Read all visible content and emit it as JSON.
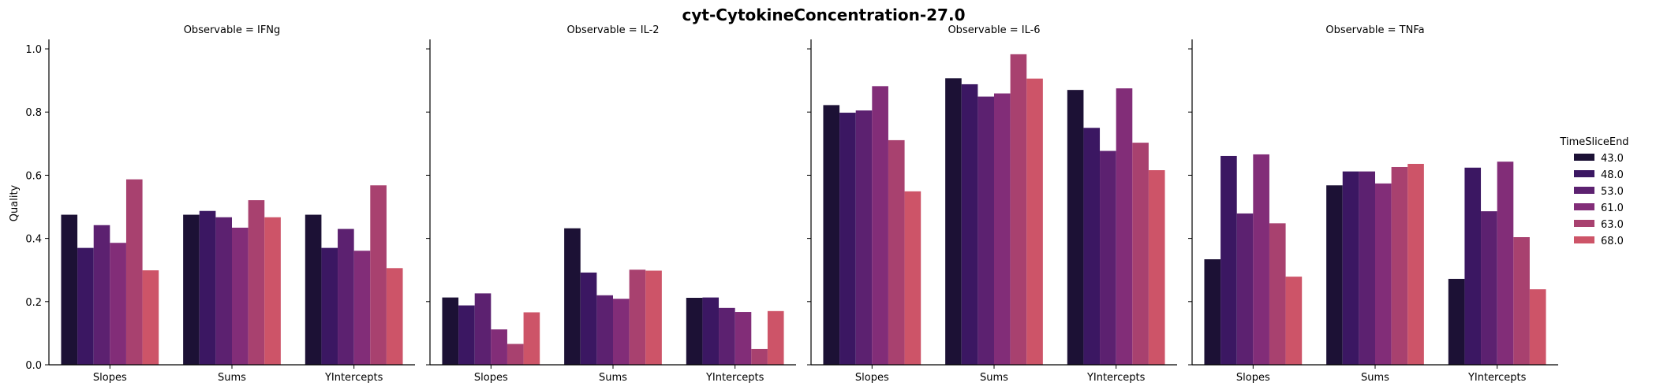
{
  "chart_data": {
    "type": "bar",
    "title": "cyt-CytokineConcentration-27.0",
    "ylabel": "Quality",
    "xlabel": "",
    "ylim": [
      0,
      1.03
    ],
    "yticks": [
      0.0,
      0.2,
      0.4,
      0.6,
      0.8,
      1.0
    ],
    "categories": [
      "Slopes",
      "Sums",
      "YIntercepts"
    ],
    "grid": false,
    "legend": {
      "title": "TimeSliceEnd",
      "placement": "right",
      "entries": [
        "43.0",
        "48.0",
        "53.0",
        "61.0",
        "63.0",
        "68.0"
      ]
    },
    "series_colors": [
      "#1c1135",
      "#3b1762",
      "#5c2170",
      "#822d78",
      "#a8416f",
      "#cd5468"
    ],
    "panels": [
      {
        "title": "Observable = IFNg",
        "series": [
          {
            "name": "43.0",
            "values": [
              0.475,
              0.475,
              0.475
            ]
          },
          {
            "name": "48.0",
            "values": [
              0.37,
              0.487,
              0.37
            ]
          },
          {
            "name": "53.0",
            "values": [
              0.442,
              0.467,
              0.43
            ]
          },
          {
            "name": "61.0",
            "values": [
              0.386,
              0.434,
              0.361
            ]
          },
          {
            "name": "63.0",
            "values": [
              0.587,
              0.521,
              0.568
            ]
          },
          {
            "name": "68.0",
            "values": [
              0.299,
              0.467,
              0.306
            ]
          }
        ]
      },
      {
        "title": "Observable = IL-2",
        "series": [
          {
            "name": "43.0",
            "values": [
              0.213,
              0.432,
              0.212
            ]
          },
          {
            "name": "48.0",
            "values": [
              0.188,
              0.292,
              0.213
            ]
          },
          {
            "name": "53.0",
            "values": [
              0.226,
              0.22,
              0.18
            ]
          },
          {
            "name": "61.0",
            "values": [
              0.112,
              0.209,
              0.167
            ]
          },
          {
            "name": "63.0",
            "values": [
              0.066,
              0.301,
              0.05
            ]
          },
          {
            "name": "68.0",
            "values": [
              0.166,
              0.298,
              0.17
            ]
          }
        ]
      },
      {
        "title": "Observable = IL-6",
        "series": [
          {
            "name": "43.0",
            "values": [
              0.822,
              0.907,
              0.87
            ]
          },
          {
            "name": "48.0",
            "values": [
              0.798,
              0.888,
              0.75
            ]
          },
          {
            "name": "53.0",
            "values": [
              0.805,
              0.849,
              0.677
            ]
          },
          {
            "name": "61.0",
            "values": [
              0.882,
              0.859,
              0.875
            ]
          },
          {
            "name": "63.0",
            "values": [
              0.711,
              0.983,
              0.703
            ]
          },
          {
            "name": "68.0",
            "values": [
              0.549,
              0.906,
              0.616
            ]
          }
        ]
      },
      {
        "title": "Observable = TNFa",
        "series": [
          {
            "name": "43.0",
            "values": [
              0.334,
              0.568,
              0.272
            ]
          },
          {
            "name": "48.0",
            "values": [
              0.661,
              0.612,
              0.624
            ]
          },
          {
            "name": "53.0",
            "values": [
              0.479,
              0.612,
              0.486
            ]
          },
          {
            "name": "61.0",
            "values": [
              0.666,
              0.574,
              0.643
            ]
          },
          {
            "name": "63.0",
            "values": [
              0.448,
              0.626,
              0.404
            ]
          },
          {
            "name": "68.0",
            "values": [
              0.279,
              0.636,
              0.239
            ]
          }
        ]
      }
    ]
  }
}
